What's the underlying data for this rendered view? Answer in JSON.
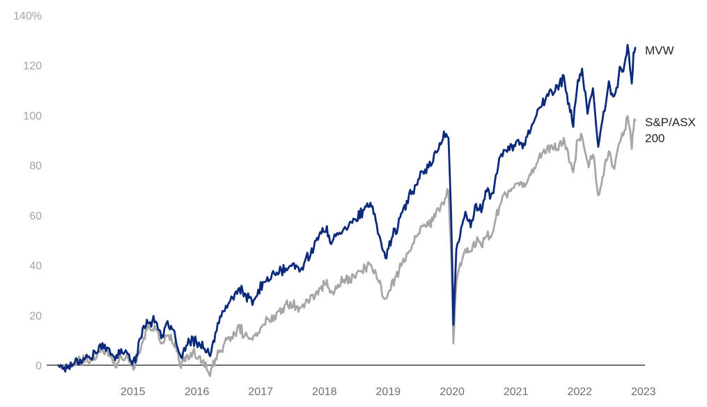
{
  "chart_data": {
    "type": "line",
    "title": "",
    "xlabel": "",
    "ylabel": "",
    "ylim": [
      0,
      140
    ],
    "y_ticks": [
      0,
      20,
      40,
      60,
      80,
      100,
      120,
      140
    ],
    "y_tick_labels": [
      "0",
      "20",
      "40",
      "60",
      "80",
      "100",
      "120",
      "140%"
    ],
    "xlim": [
      "2014-05-01",
      "2023-05-15"
    ],
    "x_ticks": [
      "2015-07-01",
      "2016-07-01",
      "2017-07-01",
      "2018-07-01",
      "2019-07-01",
      "2020-07-01",
      "2021-07-01",
      "2022-07-01",
      "2023-07-01"
    ],
    "x_tick_labels": [
      "2015",
      "2016",
      "2017",
      "2018",
      "2019",
      "2020",
      "2021",
      "2022",
      "2023"
    ],
    "grid": false,
    "legend": "end-of-line labels",
    "series": [
      {
        "name": "MVW",
        "color": "#0b2a7c",
        "label_lines": [
          "MVW"
        ],
        "points": [
          [
            "2014-05-01",
            0
          ],
          [
            "2014-06-15",
            -1
          ],
          [
            "2014-08-15",
            2
          ],
          [
            "2014-10-15",
            3
          ],
          [
            "2014-12-01",
            5
          ],
          [
            "2015-01-01",
            7
          ],
          [
            "2015-02-10",
            8
          ],
          [
            "2015-03-15",
            2
          ],
          [
            "2015-05-01",
            6
          ],
          [
            "2015-06-15",
            3
          ],
          [
            "2015-07-15",
            2
          ],
          [
            "2015-09-01",
            16
          ],
          [
            "2015-10-01",
            18
          ],
          [
            "2015-11-15",
            17
          ],
          [
            "2015-12-10",
            12
          ],
          [
            "2016-01-15",
            16
          ],
          [
            "2016-03-01",
            11
          ],
          [
            "2016-04-01",
            2
          ],
          [
            "2016-05-01",
            8
          ],
          [
            "2016-06-15",
            10
          ],
          [
            "2016-08-01",
            8
          ],
          [
            "2016-09-15",
            3
          ],
          [
            "2016-10-15",
            13
          ],
          [
            "2016-12-01",
            22
          ],
          [
            "2017-01-15",
            26
          ],
          [
            "2017-03-01",
            31
          ],
          [
            "2017-04-01",
            28
          ],
          [
            "2017-05-15",
            25
          ],
          [
            "2017-07-01",
            31
          ],
          [
            "2017-08-15",
            35
          ],
          [
            "2017-10-01",
            37
          ],
          [
            "2017-11-15",
            38
          ],
          [
            "2018-01-01",
            40
          ],
          [
            "2018-02-15",
            38
          ],
          [
            "2018-04-01",
            44
          ],
          [
            "2018-06-01",
            52
          ],
          [
            "2018-07-15",
            54
          ],
          [
            "2018-08-15",
            49
          ],
          [
            "2018-10-01",
            54
          ],
          [
            "2018-12-01",
            57
          ],
          [
            "2019-02-01",
            61
          ],
          [
            "2019-03-15",
            64
          ],
          [
            "2019-04-15",
            60
          ],
          [
            "2019-05-15",
            50
          ],
          [
            "2019-06-15",
            43
          ],
          [
            "2019-07-15",
            50
          ],
          [
            "2019-09-01",
            57
          ],
          [
            "2019-10-15",
            65
          ],
          [
            "2019-12-01",
            72
          ],
          [
            "2020-01-15",
            78
          ],
          [
            "2020-03-01",
            80
          ],
          [
            "2020-04-15",
            88
          ],
          [
            "2020-05-15",
            92
          ],
          [
            "2020-06-10",
            92
          ],
          [
            "2020-06-25",
            60
          ],
          [
            "2020-07-08",
            17
          ],
          [
            "2020-07-25",
            45
          ],
          [
            "2020-08-15",
            53
          ],
          [
            "2020-09-15",
            60
          ],
          [
            "2020-10-15",
            57
          ],
          [
            "2020-11-15",
            64
          ],
          [
            "2020-12-15",
            62
          ],
          [
            "2021-01-15",
            70
          ],
          [
            "2021-02-15",
            68
          ],
          [
            "2021-03-15",
            78
          ],
          [
            "2021-04-15",
            85
          ],
          [
            "2021-06-01",
            87
          ],
          [
            "2021-07-15",
            90
          ],
          [
            "2021-08-15",
            88
          ],
          [
            "2021-10-01",
            97
          ],
          [
            "2021-11-15",
            103
          ],
          [
            "2021-12-15",
            106
          ],
          [
            "2022-01-15",
            109
          ],
          [
            "2022-03-01",
            112
          ],
          [
            "2022-04-01",
            115
          ],
          [
            "2022-05-01",
            103
          ],
          [
            "2022-05-25",
            97
          ],
          [
            "2022-06-15",
            112
          ],
          [
            "2022-07-15",
            118
          ],
          [
            "2022-08-15",
            100
          ],
          [
            "2022-09-15",
            110
          ],
          [
            "2022-10-15",
            88
          ],
          [
            "2022-11-15",
            100
          ],
          [
            "2022-12-15",
            112
          ],
          [
            "2023-01-15",
            107
          ],
          [
            "2023-02-15",
            118
          ],
          [
            "2023-03-15",
            120
          ],
          [
            "2023-04-01",
            127
          ],
          [
            "2023-04-15",
            119
          ],
          [
            "2023-04-25",
            112
          ],
          [
            "2023-05-05",
            124
          ],
          [
            "2023-05-15",
            127
          ]
        ]
      },
      {
        "name": "S&P/ASX 200",
        "color": "#a6a6a6",
        "label_lines": [
          "S&P/ASX",
          "200"
        ],
        "points": [
          [
            "2014-05-01",
            0
          ],
          [
            "2014-06-15",
            -1
          ],
          [
            "2014-08-15",
            1
          ],
          [
            "2014-10-15",
            2
          ],
          [
            "2014-12-01",
            3
          ],
          [
            "2015-01-01",
            5
          ],
          [
            "2015-02-10",
            6
          ],
          [
            "2015-03-15",
            0
          ],
          [
            "2015-05-01",
            4
          ],
          [
            "2015-06-15",
            1
          ],
          [
            "2015-07-15",
            0
          ],
          [
            "2015-09-01",
            12
          ],
          [
            "2015-10-01",
            15
          ],
          [
            "2015-11-15",
            14
          ],
          [
            "2015-12-10",
            9
          ],
          [
            "2016-01-15",
            12
          ],
          [
            "2016-03-01",
            8
          ],
          [
            "2016-04-01",
            -1
          ],
          [
            "2016-05-01",
            3
          ],
          [
            "2016-06-15",
            5
          ],
          [
            "2016-08-01",
            2
          ],
          [
            "2016-09-15",
            -4
          ],
          [
            "2016-10-15",
            3
          ],
          [
            "2016-12-01",
            8
          ],
          [
            "2017-01-15",
            11
          ],
          [
            "2017-03-01",
            15
          ],
          [
            "2017-04-01",
            12
          ],
          [
            "2017-05-15",
            10
          ],
          [
            "2017-07-01",
            15
          ],
          [
            "2017-08-15",
            18
          ],
          [
            "2017-10-01",
            21
          ],
          [
            "2017-11-15",
            24
          ],
          [
            "2018-01-01",
            25
          ],
          [
            "2018-02-15",
            23
          ],
          [
            "2018-04-01",
            26
          ],
          [
            "2018-06-01",
            30
          ],
          [
            "2018-07-15",
            33
          ],
          [
            "2018-08-15",
            29
          ],
          [
            "2018-10-01",
            33
          ],
          [
            "2018-12-01",
            35
          ],
          [
            "2019-02-01",
            38
          ],
          [
            "2019-03-15",
            40
          ],
          [
            "2019-04-15",
            37
          ],
          [
            "2019-05-15",
            32
          ],
          [
            "2019-06-15",
            26
          ],
          [
            "2019-07-15",
            32
          ],
          [
            "2019-09-01",
            38
          ],
          [
            "2019-10-15",
            44
          ],
          [
            "2019-12-01",
            50
          ],
          [
            "2020-01-15",
            55
          ],
          [
            "2020-03-01",
            57
          ],
          [
            "2020-04-15",
            62
          ],
          [
            "2020-05-15",
            66
          ],
          [
            "2020-06-10",
            70
          ],
          [
            "2020-06-25",
            45
          ],
          [
            "2020-07-08",
            10
          ],
          [
            "2020-07-25",
            33
          ],
          [
            "2020-08-15",
            40
          ],
          [
            "2020-09-15",
            47
          ],
          [
            "2020-10-15",
            45
          ],
          [
            "2020-11-15",
            50
          ],
          [
            "2020-12-15",
            48
          ],
          [
            "2021-01-15",
            53
          ],
          [
            "2021-02-15",
            52
          ],
          [
            "2021-03-15",
            61
          ],
          [
            "2021-04-15",
            67
          ],
          [
            "2021-06-01",
            70
          ],
          [
            "2021-07-15",
            73
          ],
          [
            "2021-08-15",
            72
          ],
          [
            "2021-10-01",
            78
          ],
          [
            "2021-11-15",
            83
          ],
          [
            "2021-12-15",
            86
          ],
          [
            "2022-01-15",
            88
          ],
          [
            "2022-03-01",
            87
          ],
          [
            "2022-04-01",
            90
          ],
          [
            "2022-05-01",
            82
          ],
          [
            "2022-05-25",
            78
          ],
          [
            "2022-06-15",
            88
          ],
          [
            "2022-07-15",
            92
          ],
          [
            "2022-08-15",
            80
          ],
          [
            "2022-09-15",
            86
          ],
          [
            "2022-10-15",
            67
          ],
          [
            "2022-11-15",
            78
          ],
          [
            "2022-12-15",
            85
          ],
          [
            "2023-01-15",
            80
          ],
          [
            "2023-02-15",
            90
          ],
          [
            "2023-03-15",
            94
          ],
          [
            "2023-04-01",
            100
          ],
          [
            "2023-04-15",
            93
          ],
          [
            "2023-04-25",
            87
          ],
          [
            "2023-05-05",
            96
          ],
          [
            "2023-05-15",
            98
          ]
        ]
      }
    ]
  }
}
